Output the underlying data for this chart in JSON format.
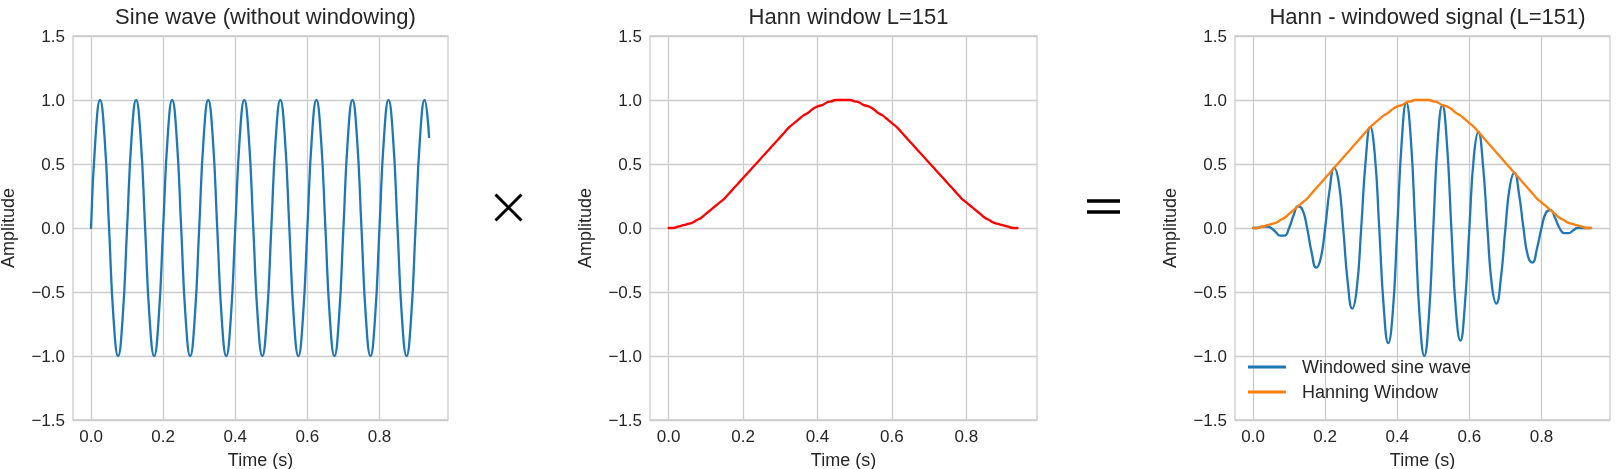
{
  "chart_data": [
    {
      "type": "line",
      "title": "Sine wave (without windowing)",
      "xlabel": "Time (s)",
      "ylabel": "Amplitude",
      "x": [
        0,
        0.0125,
        0.025,
        0.0375,
        0.05,
        0.0625,
        0.075,
        0.0875,
        0.1,
        0.1125,
        0.125,
        0.1375,
        0.15,
        0.1625,
        0.175,
        0.1875,
        0.2,
        0.2125,
        0.225,
        0.2375,
        0.25,
        0.2625,
        0.275,
        0.2875,
        0.3,
        0.3125,
        0.325,
        0.3375,
        0.35,
        0.3625,
        0.375,
        0.3875,
        0.4,
        0.4125,
        0.425,
        0.4375,
        0.45,
        0.4625,
        0.475,
        0.4875,
        0.5,
        0.5125,
        0.525,
        0.5375,
        0.55,
        0.5625,
        0.575,
        0.5875,
        0.6,
        0.6125,
        0.625,
        0.6375,
        0.65,
        0.6625,
        0.675,
        0.6875,
        0.7,
        0.7125,
        0.725,
        0.7375,
        0.75,
        0.7625,
        0.775,
        0.7875,
        0.8,
        0.8125,
        0.825,
        0.8375,
        0.85,
        0.8625,
        0.875,
        0.8875,
        0.9,
        0.9125,
        0.925,
        0.9375
      ],
      "series": [
        {
          "color": "#1f77b4",
          "values": [
            0,
            0.71,
            1,
            0.71,
            0,
            -0.71,
            -1,
            -0.71,
            0,
            0.71,
            1,
            0.71,
            0,
            -0.71,
            -1,
            -0.71,
            0,
            0.71,
            1,
            0.71,
            0,
            -0.71,
            -1,
            -0.71,
            0,
            0.71,
            1,
            0.71,
            0,
            -0.71,
            -1,
            -0.71,
            0,
            0.71,
            1,
            0.71,
            0,
            -0.71,
            -1,
            -0.71,
            0,
            0.71,
            1,
            0.71,
            0,
            -0.71,
            -1,
            -0.71,
            0,
            0.71,
            1,
            0.71,
            0,
            -0.71,
            -1,
            -0.71,
            0,
            0.71,
            1,
            0.71,
            0,
            -0.71,
            -1,
            -0.71,
            0,
            0.71,
            1,
            0.71,
            0,
            -0.71,
            -1,
            -0.71,
            0,
            0.71,
            1,
            0.71
          ]
        }
      ],
      "xlim": [
        -0.05,
        0.99
      ],
      "ylim": [
        -1.5,
        1.5
      ],
      "xticks": [
        {
          "value": 0,
          "label": "0.0"
        },
        {
          "value": 0.2,
          "label": "0.2"
        },
        {
          "value": 0.4,
          "label": "0.4"
        },
        {
          "value": 0.6,
          "label": "0.6"
        },
        {
          "value": 0.8,
          "label": "0.8"
        }
      ],
      "yticks": [
        {
          "value": -1.5,
          "label": "−1.5"
        },
        {
          "value": -1,
          "label": "−1.0"
        },
        {
          "value": -0.5,
          "label": "−0.5"
        },
        {
          "value": 0,
          "label": "0.0"
        },
        {
          "value": 0.5,
          "label": "0.5"
        },
        {
          "value": 1,
          "label": "1.0"
        },
        {
          "value": 1.5,
          "label": "1.5"
        }
      ],
      "grid": true
    },
    {
      "type": "line",
      "title": "Hann window L=151",
      "xlabel": "Time (s)",
      "ylabel": "Amplitude",
      "x": [
        0,
        0.0125,
        0.025,
        0.0375,
        0.05,
        0.0625,
        0.075,
        0.0875,
        0.1,
        0.1125,
        0.125,
        0.1375,
        0.15,
        0.1625,
        0.175,
        0.1875,
        0.2,
        0.2125,
        0.225,
        0.2375,
        0.25,
        0.2625,
        0.275,
        0.2875,
        0.3,
        0.3125,
        0.325,
        0.3375,
        0.35,
        0.3625,
        0.375,
        0.3875,
        0.4,
        0.4125,
        0.425,
        0.4375,
        0.45,
        0.4625,
        0.475,
        0.4875,
        0.5,
        0.5125,
        0.525,
        0.5375,
        0.55,
        0.5625,
        0.575,
        0.5875,
        0.6,
        0.6125,
        0.625,
        0.6375,
        0.65,
        0.6625,
        0.675,
        0.6875,
        0.7,
        0.7125,
        0.725,
        0.7375,
        0.75,
        0.7625,
        0.775,
        0.7875,
        0.8,
        0.8125,
        0.825,
        0.8375,
        0.85,
        0.8625,
        0.875,
        0.8875,
        0.9,
        0.9125,
        0.925,
        0.9375
      ],
      "series": [
        {
          "color": "#ff0000",
          "values": [
            0,
            0,
            0.01,
            0.02,
            0.03,
            0.04,
            0.06,
            0.08,
            0.11,
            0.14,
            0.17,
            0.2,
            0.23,
            0.27,
            0.31,
            0.35,
            0.39,
            0.43,
            0.47,
            0.51,
            0.55,
            0.59,
            0.63,
            0.67,
            0.71,
            0.75,
            0.79,
            0.82,
            0.85,
            0.88,
            0.9,
            0.93,
            0.95,
            0.96,
            0.98,
            0.99,
            1,
            1,
            1,
            1,
            0.99,
            0.98,
            0.96,
            0.95,
            0.93,
            0.9,
            0.88,
            0.85,
            0.82,
            0.79,
            0.75,
            0.71,
            0.67,
            0.63,
            0.59,
            0.55,
            0.51,
            0.47,
            0.43,
            0.39,
            0.35,
            0.31,
            0.27,
            0.23,
            0.2,
            0.17,
            0.14,
            0.11,
            0.08,
            0.06,
            0.04,
            0.03,
            0.02,
            0.01,
            0,
            0
          ]
        }
      ],
      "xlim": [
        -0.05,
        0.99
      ],
      "ylim": [
        -1.5,
        1.5
      ],
      "xticks": [
        {
          "value": 0,
          "label": "0.0"
        },
        {
          "value": 0.2,
          "label": "0.2"
        },
        {
          "value": 0.4,
          "label": "0.4"
        },
        {
          "value": 0.6,
          "label": "0.6"
        },
        {
          "value": 0.8,
          "label": "0.8"
        }
      ],
      "yticks": [
        {
          "value": -1.5,
          "label": "−1.5"
        },
        {
          "value": -1,
          "label": "−1.0"
        },
        {
          "value": -0.5,
          "label": "−0.5"
        },
        {
          "value": 0,
          "label": "0.0"
        },
        {
          "value": 0.5,
          "label": "0.5"
        },
        {
          "value": 1,
          "label": "1.0"
        },
        {
          "value": 1.5,
          "label": "1.5"
        }
      ],
      "grid": true
    },
    {
      "type": "line",
      "title": "Hann - windowed signal (L=151)",
      "xlabel": "Time (s)",
      "ylabel": "Amplitude",
      "x": [
        0,
        0.0125,
        0.025,
        0.0375,
        0.05,
        0.0625,
        0.075,
        0.0875,
        0.1,
        0.1125,
        0.125,
        0.1375,
        0.15,
        0.1625,
        0.175,
        0.1875,
        0.2,
        0.2125,
        0.225,
        0.2375,
        0.25,
        0.2625,
        0.275,
        0.2875,
        0.3,
        0.3125,
        0.325,
        0.3375,
        0.35,
        0.3625,
        0.375,
        0.3875,
        0.4,
        0.4125,
        0.425,
        0.4375,
        0.45,
        0.4625,
        0.475,
        0.4875,
        0.5,
        0.5125,
        0.525,
        0.5375,
        0.55,
        0.5625,
        0.575,
        0.5875,
        0.6,
        0.6125,
        0.625,
        0.6375,
        0.65,
        0.6625,
        0.675,
        0.6875,
        0.7,
        0.7125,
        0.725,
        0.7375,
        0.75,
        0.7625,
        0.775,
        0.7875,
        0.8,
        0.8125,
        0.825,
        0.8375,
        0.85,
        0.8625,
        0.875,
        0.8875,
        0.9,
        0.9125,
        0.925,
        0.9375
      ],
      "series": [
        {
          "name": "Windowed sine wave",
          "color": "#1f77b4",
          "values": [
            0,
            0,
            0.01,
            0.01,
            0,
            -0.03,
            -0.06,
            -0.06,
            0,
            0.1,
            0.17,
            0.14,
            0,
            -0.19,
            -0.31,
            -0.24,
            0,
            0.3,
            0.47,
            0.36,
            0,
            -0.42,
            -0.63,
            -0.48,
            0,
            0.53,
            0.79,
            0.58,
            0,
            -0.62,
            -0.9,
            -0.66,
            0,
            0.68,
            0.98,
            0.7,
            0,
            -0.71,
            -1,
            -0.7,
            0,
            0.69,
            0.96,
            0.67,
            0,
            -0.64,
            -0.88,
            -0.6,
            0,
            0.56,
            0.75,
            0.5,
            0,
            -0.45,
            -0.59,
            -0.39,
            0,
            0.33,
            0.43,
            0.27,
            0,
            -0.22,
            -0.27,
            -0.16,
            0,
            0.12,
            0.14,
            0.08,
            0,
            -0.04,
            -0.04,
            -0.02,
            0,
            0,
            0,
            0
          ]
        },
        {
          "name": "Hanning Window",
          "color": "#ff7f0e",
          "values": [
            0,
            0,
            0.01,
            0.02,
            0.03,
            0.04,
            0.06,
            0.08,
            0.11,
            0.14,
            0.17,
            0.2,
            0.23,
            0.27,
            0.31,
            0.35,
            0.39,
            0.43,
            0.47,
            0.51,
            0.55,
            0.59,
            0.63,
            0.67,
            0.71,
            0.75,
            0.79,
            0.82,
            0.85,
            0.88,
            0.9,
            0.93,
            0.95,
            0.96,
            0.98,
            0.99,
            1,
            1,
            1,
            1,
            0.99,
            0.98,
            0.96,
            0.95,
            0.93,
            0.9,
            0.88,
            0.85,
            0.82,
            0.79,
            0.75,
            0.71,
            0.67,
            0.63,
            0.59,
            0.55,
            0.51,
            0.47,
            0.43,
            0.39,
            0.35,
            0.31,
            0.27,
            0.23,
            0.2,
            0.17,
            0.14,
            0.11,
            0.08,
            0.06,
            0.04,
            0.03,
            0.02,
            0.01,
            0,
            0
          ]
        }
      ],
      "xlim": [
        -0.05,
        0.99
      ],
      "ylim": [
        -1.5,
        1.5
      ],
      "xticks": [
        {
          "value": 0,
          "label": "0.0"
        },
        {
          "value": 0.2,
          "label": "0.2"
        },
        {
          "value": 0.4,
          "label": "0.4"
        },
        {
          "value": 0.6,
          "label": "0.6"
        },
        {
          "value": 0.8,
          "label": "0.8"
        }
      ],
      "yticks": [
        {
          "value": -1.5,
          "label": "−1.5"
        },
        {
          "value": -1,
          "label": "−1.0"
        },
        {
          "value": -0.5,
          "label": "−0.5"
        },
        {
          "value": 0,
          "label": "0.0"
        },
        {
          "value": 0.5,
          "label": "0.5"
        },
        {
          "value": 1,
          "label": "1.0"
        },
        {
          "value": 1.5,
          "label": "1.5"
        }
      ],
      "grid": true,
      "legend": "bottom left"
    }
  ]
}
